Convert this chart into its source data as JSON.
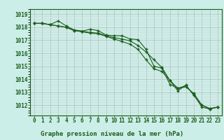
{
  "title": "Graphe pression niveau de la mer (hPa)",
  "bg_color": "#cceee8",
  "line_color": "#1a5c1a",
  "grid_color_major": "#b0b0b0",
  "grid_color_minor": "#d0d0d0",
  "xlim": [
    -0.5,
    23.5
  ],
  "ylim": [
    1011.2,
    1019.4
  ],
  "yticks": [
    1012,
    1013,
    1014,
    1015,
    1016,
    1017,
    1018,
    1019
  ],
  "xticks": [
    0,
    1,
    2,
    3,
    4,
    5,
    6,
    7,
    8,
    9,
    10,
    11,
    12,
    13,
    14,
    15,
    16,
    17,
    18,
    19,
    20,
    21,
    22,
    23
  ],
  "series1": [
    1018.3,
    1018.3,
    1018.2,
    1018.5,
    1018.1,
    1017.8,
    1017.7,
    1017.85,
    1017.75,
    1017.4,
    1017.35,
    1017.35,
    1017.1,
    1017.05,
    1016.3,
    1015.0,
    1014.85,
    1013.6,
    1013.3,
    1013.5,
    1012.8,
    1011.85,
    1011.7,
    1011.85
  ],
  "series2": [
    1018.3,
    1018.3,
    1018.2,
    1018.1,
    1018.0,
    1017.75,
    1017.7,
    1017.6,
    1017.55,
    1017.35,
    1017.2,
    1017.1,
    1016.95,
    1016.6,
    1016.1,
    1015.5,
    1014.9,
    1013.9,
    1013.3,
    1013.4,
    1012.9,
    1012.0,
    1011.75,
    1011.85
  ],
  "series3": [
    1018.3,
    1018.3,
    1018.2,
    1018.1,
    1018.0,
    1017.75,
    1017.65,
    1017.55,
    1017.5,
    1017.3,
    1017.1,
    1016.9,
    1016.7,
    1016.3,
    1015.5,
    1014.8,
    1014.6,
    1013.9,
    1013.1,
    1013.55,
    1012.75,
    1012.0,
    1011.7,
    1011.85
  ],
  "title_fontsize": 6.5,
  "tick_fontsize": 5.5
}
